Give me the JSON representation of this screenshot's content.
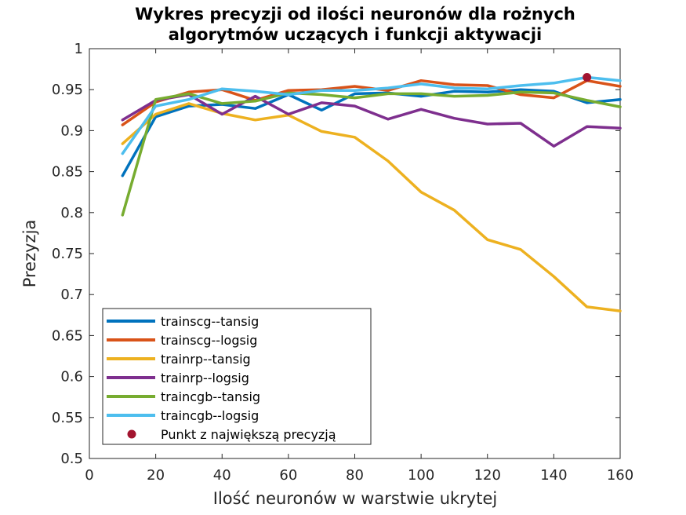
{
  "chart_data": {
    "type": "line",
    "title": [
      "Wykres precyzji od ilości neuronów dla rożnych",
      "algorytmów uczących i funkcji aktywacji"
    ],
    "xlabel": "Ilość neuronów w warstwie ukrytej",
    "ylabel": "Prezyzja",
    "xlim": [
      0,
      160
    ],
    "ylim": [
      0.5,
      1
    ],
    "xticks": [
      0,
      20,
      40,
      60,
      80,
      100,
      120,
      140,
      160
    ],
    "yticks": [
      0.5,
      0.55,
      0.6,
      0.65,
      0.7,
      0.75,
      0.8,
      0.85,
      0.9,
      0.95,
      1
    ],
    "xtick_labels": [
      "0",
      "20",
      "40",
      "60",
      "80",
      "100",
      "120",
      "140",
      "160"
    ],
    "ytick_labels": [
      "0.5",
      "0.55",
      "0.6",
      "0.65",
      "0.7",
      "0.75",
      "0.8",
      "0.85",
      "0.9",
      "0.95",
      "1"
    ],
    "grid": false,
    "legend_position": "bottom-left",
    "x": [
      10,
      20,
      30,
      40,
      50,
      60,
      70,
      80,
      90,
      100,
      110,
      120,
      130,
      140,
      150,
      160
    ],
    "series": [
      {
        "name": "trainscg--tansig",
        "color": "#0072BD",
        "values": [
          0.845,
          0.917,
          0.93,
          0.932,
          0.927,
          0.944,
          0.925,
          0.945,
          0.946,
          0.942,
          0.948,
          0.947,
          0.95,
          0.948,
          0.934,
          0.938
        ]
      },
      {
        "name": "trainscg--logsig",
        "color": "#D95319",
        "values": [
          0.907,
          0.935,
          0.947,
          0.95,
          0.937,
          0.949,
          0.95,
          0.954,
          0.949,
          0.961,
          0.956,
          0.955,
          0.944,
          0.94,
          0.961,
          0.954
        ]
      },
      {
        "name": "trainrp--tansig",
        "color": "#EDB120",
        "values": [
          0.884,
          0.92,
          0.933,
          0.921,
          0.913,
          0.919,
          0.899,
          0.892,
          0.863,
          0.825,
          0.803,
          0.767,
          0.755,
          0.722,
          0.685,
          0.68
        ]
      },
      {
        "name": "trainrp--logsig",
        "color": "#7E2F8E",
        "values": [
          0.913,
          0.937,
          0.944,
          0.92,
          0.942,
          0.92,
          0.934,
          0.93,
          0.914,
          0.926,
          0.915,
          0.908,
          0.909,
          0.881,
          0.905,
          0.903
        ]
      },
      {
        "name": "traincgb--tansig",
        "color": "#77AC30",
        "values": [
          0.797,
          0.938,
          0.945,
          0.933,
          0.936,
          0.946,
          0.944,
          0.94,
          0.945,
          0.945,
          0.942,
          0.943,
          0.947,
          0.946,
          0.937,
          0.929
        ]
      },
      {
        "name": "traincgb--logsig",
        "color": "#4DBEEE",
        "values": [
          0.872,
          0.93,
          0.938,
          0.951,
          0.948,
          0.944,
          0.949,
          0.949,
          0.952,
          0.957,
          0.952,
          0.951,
          0.955,
          0.958,
          0.965,
          0.961
        ]
      }
    ],
    "highlight_point": {
      "name": "Punkt z największą precyzją",
      "x": 150,
      "y": 0.965,
      "color": "#A2142F"
    }
  }
}
